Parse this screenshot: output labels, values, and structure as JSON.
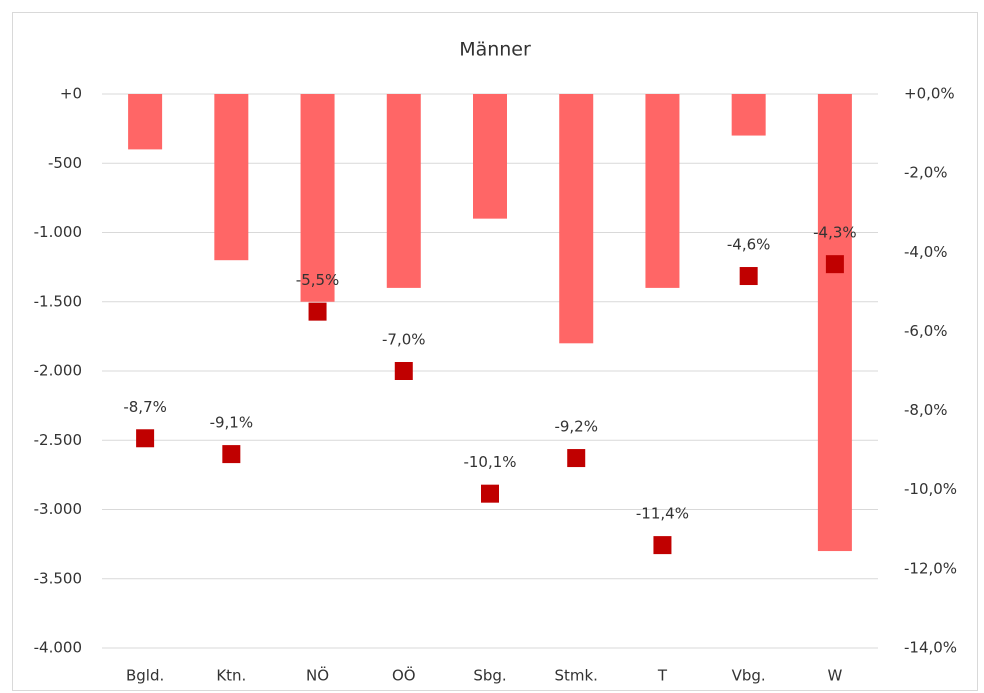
{
  "chart_data": {
    "type": "bar_scatter",
    "title": "Männer",
    "categories": [
      "Bgld.",
      "Ktn.",
      "NÖ",
      "OÖ",
      "Sbg.",
      "Stmk.",
      "T",
      "Vbg.",
      "W"
    ],
    "series": [
      {
        "type": "bar",
        "color": "#ff6666",
        "values": [
          -400,
          -1200,
          -1500,
          -1400,
          -900,
          -1800,
          -1400,
          -300,
          -3300
        ]
      },
      {
        "type": "marker",
        "axis": "y2",
        "color": "#c00000",
        "values": [
          -8.7,
          -9.1,
          -5.5,
          -7.0,
          -10.1,
          -9.2,
          -11.4,
          -4.6,
          -4.3
        ],
        "value_labels": [
          "-8,7%",
          "-9,1%",
          "-5,5%",
          "-7,0%",
          "-10,1%",
          "-9,2%",
          "-11,4%",
          "-4,6%",
          "-4,3%"
        ]
      }
    ],
    "ylim": [
      0,
      -4000
    ],
    "yticks": [
      {
        "value": 0,
        "label": "+0"
      },
      -500,
      {
        "value": -1000,
        "label": "-1.000"
      },
      {
        "value": -1500,
        "label": "-1.500"
      },
      {
        "value": -2000,
        "label": "-2.000"
      },
      {
        "value": -2500,
        "label": "-2.500"
      },
      {
        "value": -3000,
        "label": "-3.000"
      },
      {
        "value": -3500,
        "label": "-3.500"
      },
      {
        "value": -4000,
        "label": "-4.000"
      }
    ],
    "y2lim": [
      0,
      -14
    ],
    "y2ticks": [
      {
        "value": 0,
        "label": "+0,0%"
      },
      {
        "value": -2,
        "label": "-2,0%"
      },
      {
        "value": -4,
        "label": "-4,0%"
      },
      {
        "value": -6,
        "label": "-6,0%"
      },
      {
        "value": -8,
        "label": "-8,0%"
      },
      {
        "value": -10,
        "label": "-10,0%"
      },
      {
        "value": -12,
        "label": "-12,0%"
      },
      {
        "value": -14,
        "label": "-14,0%"
      }
    ],
    "grid": true
  }
}
